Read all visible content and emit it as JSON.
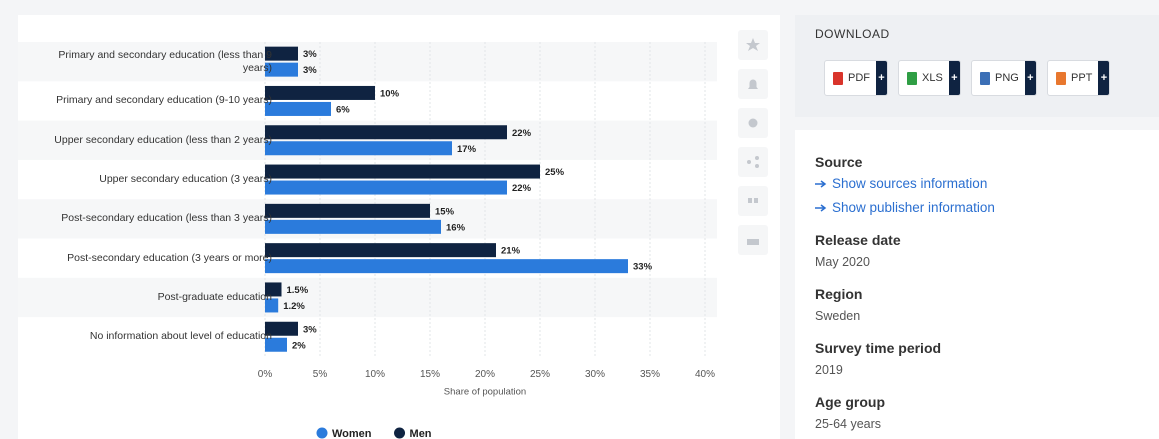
{
  "chart_data": {
    "type": "bar",
    "orientation": "horizontal",
    "categories": [
      "Primary and secondary education (less than 9 years)",
      "Primary and secondary education (9-10 years)",
      "Upper secondary education (less than 2 years)",
      "Upper secondary education (3 years)",
      "Post-secondary education (less than 3 years)",
      "Post-secondary education (3 years or more)",
      "Post-graduate education",
      "No information about level of education"
    ],
    "series": [
      {
        "name": "Women",
        "color": "#2b7bdc",
        "values": [
          3,
          6,
          17,
          22,
          16,
          33,
          1.2,
          2
        ],
        "value_labels": [
          "3%",
          "6%",
          "17%",
          "22%",
          "16%",
          "33%",
          "1.2%",
          "2%"
        ]
      },
      {
        "name": "Men",
        "color": "#0f2341",
        "values": [
          3,
          10,
          22,
          25,
          15,
          21,
          1.5,
          3
        ],
        "value_labels": [
          "3%",
          "10%",
          "22%",
          "25%",
          "15%",
          "21%",
          "1.5%",
          "3%"
        ]
      }
    ],
    "xlabel": "Share of population",
    "xlim": [
      0,
      40
    ],
    "xticks": [
      {
        "value": 0,
        "label": "0%"
      },
      {
        "value": 5,
        "label": "5%"
      },
      {
        "value": 10,
        "label": "10%"
      },
      {
        "value": 15,
        "label": "15%"
      },
      {
        "value": 20,
        "label": "20%"
      },
      {
        "value": 25,
        "label": "25%"
      },
      {
        "value": 30,
        "label": "30%"
      },
      {
        "value": 35,
        "label": "35%"
      },
      {
        "value": 40,
        "label": "40%"
      }
    ],
    "grid": true,
    "legend": "bottom"
  },
  "download": {
    "title": "DOWNLOAD",
    "buttons": [
      {
        "label": "PDF",
        "action": "+",
        "color": "#d9342b"
      },
      {
        "label": "XLS",
        "action": "+",
        "color": "#2f9e44"
      },
      {
        "label": "PNG",
        "action": "+",
        "color": "#3b6fb6"
      },
      {
        "label": "PPT",
        "action": "+",
        "color": "#e8772e"
      }
    ]
  },
  "info": {
    "source_title": "Source",
    "links": [
      "Show sources information",
      "Show publisher information"
    ],
    "details": [
      {
        "title": "Release date",
        "value": "May 2020"
      },
      {
        "title": "Region",
        "value": "Sweden"
      },
      {
        "title": "Survey time period",
        "value": "2019"
      },
      {
        "title": "Age group",
        "value": "25-64 years"
      }
    ]
  }
}
